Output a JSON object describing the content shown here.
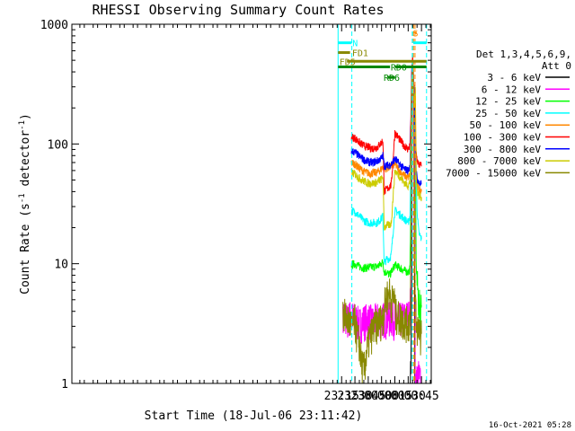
{
  "chart_data": {
    "type": "line",
    "title": "RHESSI Observing Summary Count Rates",
    "xlabel": "Start Time (18-Jul-06 23:11:42)",
    "ylabel_main": "Count Rate (s",
    "ylabel_sup1": "-1",
    "ylabel_mid": " detector",
    "ylabel_sup2": "-1",
    "ylabel_end": ")",
    "yscale": "log",
    "ylim": [
      1,
      1000
    ],
    "xlim_minutes": [
      1091.0,
      1496.0
    ],
    "x_ticks": [
      {
        "t": 1395,
        "label": "23:15"
      },
      {
        "t": 1410,
        "label": "23:30"
      },
      {
        "t": 1425,
        "label": "23:45"
      },
      {
        "t": 1440,
        "label": "00:00"
      },
      {
        "t": 1455,
        "label": "00:15"
      },
      {
        "t": 1470,
        "label": "00:30"
      },
      {
        "t": 1485,
        "label": "00:45"
      }
    ],
    "y_ticks": [
      {
        "v": 1,
        "label": "1"
      },
      {
        "v": 10,
        "label": "10"
      },
      {
        "v": 100,
        "label": "100"
      },
      {
        "v": 1000,
        "label": "1000"
      }
    ],
    "legend_title": [
      "Det 1,3,4,5,6,9,",
      "Att 0"
    ],
    "series": [
      {
        "name": "3 - 6 keV",
        "color": "#000000",
        "points": [
          [
            1472.4,
            1.0
          ],
          [
            1473.0,
            1.4
          ],
          [
            1473.8,
            5
          ],
          [
            1474.2,
            60
          ],
          [
            1474.6,
            300
          ],
          [
            1475.0,
            420
          ],
          [
            1475.8,
            280
          ],
          [
            1476.5,
            200
          ],
          [
            1477.5,
            1.0
          ]
        ]
      },
      {
        "name": "6 - 12 keV",
        "color": "#ff00ff",
        "points": [
          [
            1396.5,
            3.6
          ],
          [
            1400,
            3.4
          ],
          [
            1405,
            3.7
          ],
          [
            1410,
            3.5
          ],
          [
            1415,
            3.2
          ],
          [
            1420,
            3.4
          ],
          [
            1425,
            3.5
          ],
          [
            1430,
            3.3
          ],
          [
            1435,
            3.5
          ],
          [
            1440,
            3.6
          ],
          [
            1441.5,
            3.5
          ],
          [
            1443,
            3.6
          ],
          [
            1446,
            3.5
          ],
          [
            1450,
            3.6
          ],
          [
            1454,
            3.5
          ],
          [
            1456,
            3.6
          ],
          [
            1460,
            3.5
          ],
          [
            1465,
            3.6
          ],
          [
            1470,
            3.7
          ],
          [
            1472,
            3.8
          ],
          [
            1473,
            8
          ],
          [
            1474,
            60
          ],
          [
            1475,
            300
          ],
          [
            1475.5,
            420
          ],
          [
            1476.5,
            280
          ],
          [
            1477.5,
            150
          ],
          [
            1478,
            1.0
          ],
          [
            1482,
            1.2
          ],
          [
            1484,
            1.0
          ]
        ]
      },
      {
        "name": "12 - 25 keV",
        "color": "#00ff00",
        "points": [
          [
            1406,
            9.8
          ],
          [
            1410,
            10
          ],
          [
            1415,
            9.5
          ],
          [
            1420,
            9.2
          ],
          [
            1425,
            9.3
          ],
          [
            1430,
            9.4
          ],
          [
            1435,
            9.5
          ],
          [
            1440,
            10
          ],
          [
            1441.5,
            10.5
          ],
          [
            1443,
            8.5
          ],
          [
            1446,
            8.5
          ],
          [
            1449,
            8.0
          ],
          [
            1451,
            8.5
          ],
          [
            1455,
            9.8
          ],
          [
            1460,
            9.3
          ],
          [
            1465,
            8.8
          ],
          [
            1470,
            8.5
          ],
          [
            1472,
            9
          ],
          [
            1473,
            30
          ],
          [
            1474,
            200
          ],
          [
            1475,
            450
          ],
          [
            1475.8,
            350
          ],
          [
            1476.5,
            230
          ],
          [
            1478,
            140
          ],
          [
            1479,
            10
          ],
          [
            1480,
            7
          ],
          [
            1481,
            6
          ],
          [
            1482,
            4.5
          ],
          [
            1485,
            4.5
          ]
        ]
      },
      {
        "name": "25 - 50 keV",
        "color": "#00ffff",
        "points": [
          [
            1406,
            28
          ],
          [
            1410,
            27
          ],
          [
            1415,
            25
          ],
          [
            1420,
            23
          ],
          [
            1425,
            22
          ],
          [
            1430,
            22
          ],
          [
            1435,
            22
          ],
          [
            1440,
            24
          ],
          [
            1441.5,
            25
          ],
          [
            1443,
            10
          ],
          [
            1446,
            11
          ],
          [
            1449,
            11
          ],
          [
            1451,
            12
          ],
          [
            1455,
            28
          ],
          [
            1460,
            26
          ],
          [
            1465,
            24
          ],
          [
            1470,
            22
          ],
          [
            1472,
            25
          ],
          [
            1473,
            60
          ],
          [
            1474,
            250
          ],
          [
            1475,
            480
          ],
          [
            1476,
            330
          ],
          [
            1477,
            210
          ],
          [
            1479,
            45
          ],
          [
            1480,
            30
          ],
          [
            1481,
            22
          ],
          [
            1482,
            18
          ],
          [
            1485,
            16
          ]
        ]
      },
      {
        "name": "50 - 100 keV",
        "color": "#ff8800",
        "points": [
          [
            1406,
            70
          ],
          [
            1410,
            68
          ],
          [
            1415,
            63
          ],
          [
            1420,
            59
          ],
          [
            1425,
            57
          ],
          [
            1430,
            57
          ],
          [
            1435,
            58
          ],
          [
            1440,
            62
          ],
          [
            1441.5,
            65
          ],
          [
            1443,
            62
          ],
          [
            1446,
            63
          ],
          [
            1449,
            64
          ],
          [
            1451,
            65
          ],
          [
            1455,
            68
          ],
          [
            1460,
            60
          ],
          [
            1465,
            55
          ],
          [
            1470,
            52
          ],
          [
            1472,
            56
          ],
          [
            1473,
            120
          ],
          [
            1474,
            380
          ],
          [
            1475,
            500
          ],
          [
            1476,
            350
          ],
          [
            1477,
            230
          ],
          [
            1478,
            300
          ],
          [
            1479,
            60
          ],
          [
            1480,
            48
          ],
          [
            1481,
            44
          ],
          [
            1482,
            42
          ],
          [
            1485,
            40
          ]
        ]
      },
      {
        "name": "100 - 300 keV",
        "color": "#ff0000",
        "points": [
          [
            1406,
            115
          ],
          [
            1410,
            112
          ],
          [
            1415,
            103
          ],
          [
            1420,
            97
          ],
          [
            1425,
            94
          ],
          [
            1430,
            92
          ],
          [
            1435,
            94
          ],
          [
            1440,
            103
          ],
          [
            1441.5,
            108
          ],
          [
            1443,
            40
          ],
          [
            1446,
            42
          ],
          [
            1449,
            44
          ],
          [
            1451,
            46
          ],
          [
            1455,
            125
          ],
          [
            1460,
            110
          ],
          [
            1465,
            98
          ],
          [
            1470,
            90
          ],
          [
            1472,
            98
          ],
          [
            1473,
            170
          ],
          [
            1474,
            420
          ],
          [
            1475,
            520
          ],
          [
            1476,
            380
          ],
          [
            1477,
            260
          ],
          [
            1478,
            120
          ],
          [
            1479,
            85
          ],
          [
            1480,
            75
          ],
          [
            1481,
            70
          ],
          [
            1482,
            67
          ],
          [
            1485,
            66
          ]
        ]
      },
      {
        "name": "300 - 800 keV",
        "color": "#0000ff",
        "points": [
          [
            1406,
            88
          ],
          [
            1410,
            85
          ],
          [
            1415,
            79
          ],
          [
            1420,
            74
          ],
          [
            1425,
            71
          ],
          [
            1430,
            70
          ],
          [
            1435,
            72
          ],
          [
            1440,
            76
          ],
          [
            1441.5,
            80
          ],
          [
            1443,
            66
          ],
          [
            1446,
            66
          ],
          [
            1449,
            67
          ],
          [
            1451,
            68
          ],
          [
            1455,
            75
          ],
          [
            1460,
            68
          ],
          [
            1465,
            62
          ],
          [
            1470,
            60
          ],
          [
            1472,
            64
          ],
          [
            1473,
            140
          ],
          [
            1474,
            400
          ],
          [
            1475,
            510
          ],
          [
            1476,
            360
          ],
          [
            1477,
            240
          ],
          [
            1478,
            100
          ],
          [
            1479,
            60
          ],
          [
            1480,
            52
          ],
          [
            1481,
            49
          ],
          [
            1482,
            47
          ],
          [
            1485,
            46
          ]
        ]
      },
      {
        "name": "800 - 7000 keV",
        "color": "#cccc00",
        "points": [
          [
            1406,
            58
          ],
          [
            1410,
            56
          ],
          [
            1415,
            52
          ],
          [
            1420,
            49
          ],
          [
            1425,
            47
          ],
          [
            1430,
            47
          ],
          [
            1435,
            48
          ],
          [
            1440,
            51
          ],
          [
            1441.5,
            54
          ],
          [
            1443,
            20
          ],
          [
            1446,
            21
          ],
          [
            1449,
            21
          ],
          [
            1451,
            22
          ],
          [
            1455,
            60
          ],
          [
            1460,
            54
          ],
          [
            1465,
            48
          ],
          [
            1470,
            45
          ],
          [
            1472,
            48
          ],
          [
            1473,
            100
          ],
          [
            1474,
            330
          ],
          [
            1475,
            470
          ],
          [
            1476,
            320
          ],
          [
            1477,
            210
          ],
          [
            1478,
            300
          ],
          [
            1479,
            55
          ],
          [
            1480,
            42
          ],
          [
            1481,
            39
          ],
          [
            1482,
            37
          ],
          [
            1485,
            36
          ]
        ]
      },
      {
        "name": "7000 - 15000 keV",
        "color": "#888800",
        "points": [
          [
            1396.5,
            4.0
          ],
          [
            1400,
            3.6
          ],
          [
            1405,
            3.2
          ],
          [
            1407,
            3.0
          ],
          [
            1410,
            3.4
          ],
          [
            1412,
            2.6
          ],
          [
            1415,
            2.2
          ],
          [
            1417,
            1.6
          ],
          [
            1420,
            1.3
          ],
          [
            1422,
            1.6
          ],
          [
            1425,
            2.2
          ],
          [
            1427,
            2.5
          ],
          [
            1430,
            2.8
          ],
          [
            1432,
            3.0
          ],
          [
            1435,
            3.2
          ],
          [
            1440,
            3.5
          ],
          [
            1441.5,
            3.5
          ],
          [
            1443,
            4.5
          ],
          [
            1446,
            5.5
          ],
          [
            1449,
            5.8
          ],
          [
            1451,
            4.8
          ],
          [
            1454,
            5.5
          ],
          [
            1456,
            3.8
          ],
          [
            1460,
            3.6
          ],
          [
            1465,
            3.4
          ],
          [
            1470,
            3.2
          ],
          [
            1472,
            3.5
          ],
          [
            1473,
            10
          ],
          [
            1474,
            180
          ],
          [
            1475,
            400
          ],
          [
            1476,
            250
          ],
          [
            1477,
            13
          ],
          [
            1478,
            6
          ],
          [
            1479,
            3.5
          ],
          [
            1480,
            3
          ],
          [
            1481,
            3
          ],
          [
            1482,
            2.6
          ],
          [
            1485,
            2.6
          ]
        ]
      }
    ],
    "vertical_lines": [
      {
        "t": 1391.0,
        "color": "#00ffff",
        "dash": false
      },
      {
        "t": 1406.5,
        "color": "#00ffff",
        "dash": true
      },
      {
        "t": 1474.6,
        "color": "#00ffff",
        "dash": true
      },
      {
        "t": 1475.6,
        "color": "#00ffff",
        "dash": true
      },
      {
        "t": 1476.0,
        "color": "#ff8800",
        "dash": true
      },
      {
        "t": 1477.7,
        "color": "#ff8800",
        "dash": true
      },
      {
        "t": 1490.7,
        "color": "#00ffff",
        "dash": true
      }
    ],
    "flag_bars": [
      {
        "label": "N",
        "color": "#00ffff",
        "y": 700,
        "segments": [
          [
            1391.0,
            1406.2
          ],
          [
            1475.8,
            1490.7
          ]
        ],
        "label_t": 1407.2,
        "label_y": 700,
        "label_color": "#00ffff"
      },
      {
        "label": "FD1",
        "color": "#888800",
        "y": 580,
        "segments": [
          [
            1391.0,
            1404.5
          ]
        ],
        "label_t": 1406.8,
        "label_y": 580,
        "label_color": "#888800"
      },
      {
        "label": "FD5",
        "color": "#888800",
        "y": 490,
        "segments": [
          [
            1401.0,
            1490.7
          ]
        ],
        "label_t": 1392.5,
        "label_y": 490,
        "label_color": "#888800"
      },
      {
        "label": "RD0",
        "color": "#008800",
        "y": 440,
        "segments": [
          [
            1391.0,
            1449.5
          ],
          [
            1455.5,
            1490.7
          ]
        ],
        "label_t": 1450.3,
        "label_y": 440,
        "label_color": "#008800"
      },
      {
        "label": "RD6",
        "color": "#008800",
        "y": 360,
        "segments": [
          [
            1447.0,
            1455.0
          ]
        ],
        "label_t": 1442.3,
        "label_y": 360,
        "label_color": "#008800"
      },
      {
        "label": "S",
        "color": "#ff8800",
        "y": 850,
        "segments": [
          [
            1477.8,
            1479.6
          ]
        ],
        "label_t": 1475.2,
        "label_y": 850,
        "label_color": "#ff8800"
      }
    ]
  },
  "footer": {
    "timestamp": "16-Oct-2021 05:28"
  }
}
